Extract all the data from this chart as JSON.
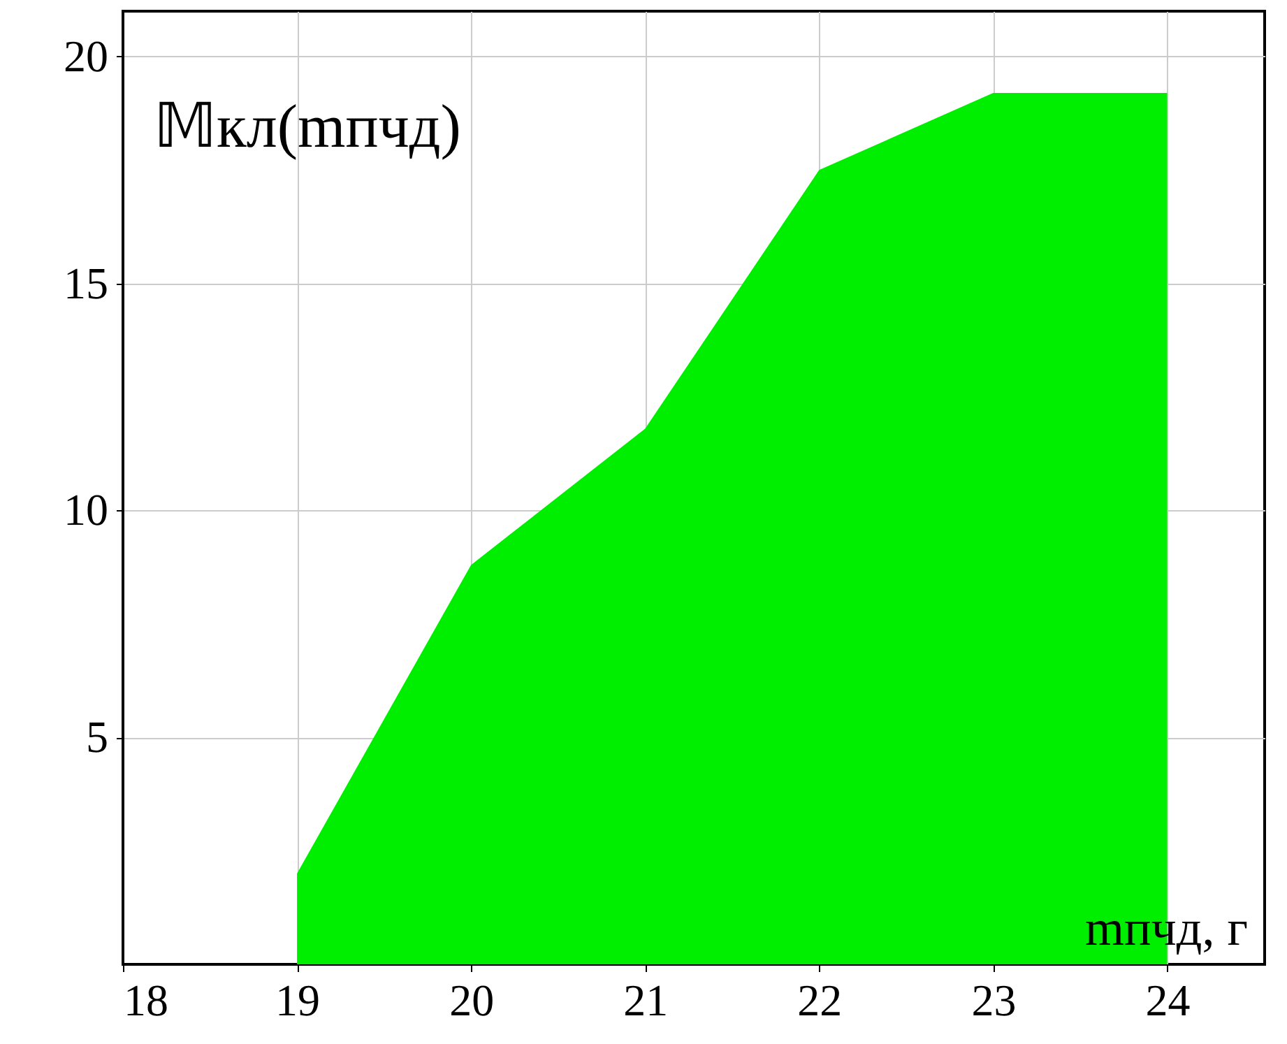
{
  "chart_data": {
    "type": "area",
    "title": "𝕄кл(mпчд)",
    "xlabel": "mпчд, г",
    "x": [
      19,
      20,
      21,
      22,
      23,
      24
    ],
    "series": [
      {
        "color": "#00ee00",
        "values": [
          2.0,
          8.8,
          11.8,
          17.5,
          19.2,
          19.2
        ]
      }
    ],
    "xlim": [
      18,
      24.56
    ],
    "ylim": [
      0,
      21
    ],
    "xticks": [
      18,
      19,
      20,
      21,
      22,
      23,
      24
    ],
    "yticks": [
      5,
      10,
      15,
      20
    ],
    "grid": true
  }
}
